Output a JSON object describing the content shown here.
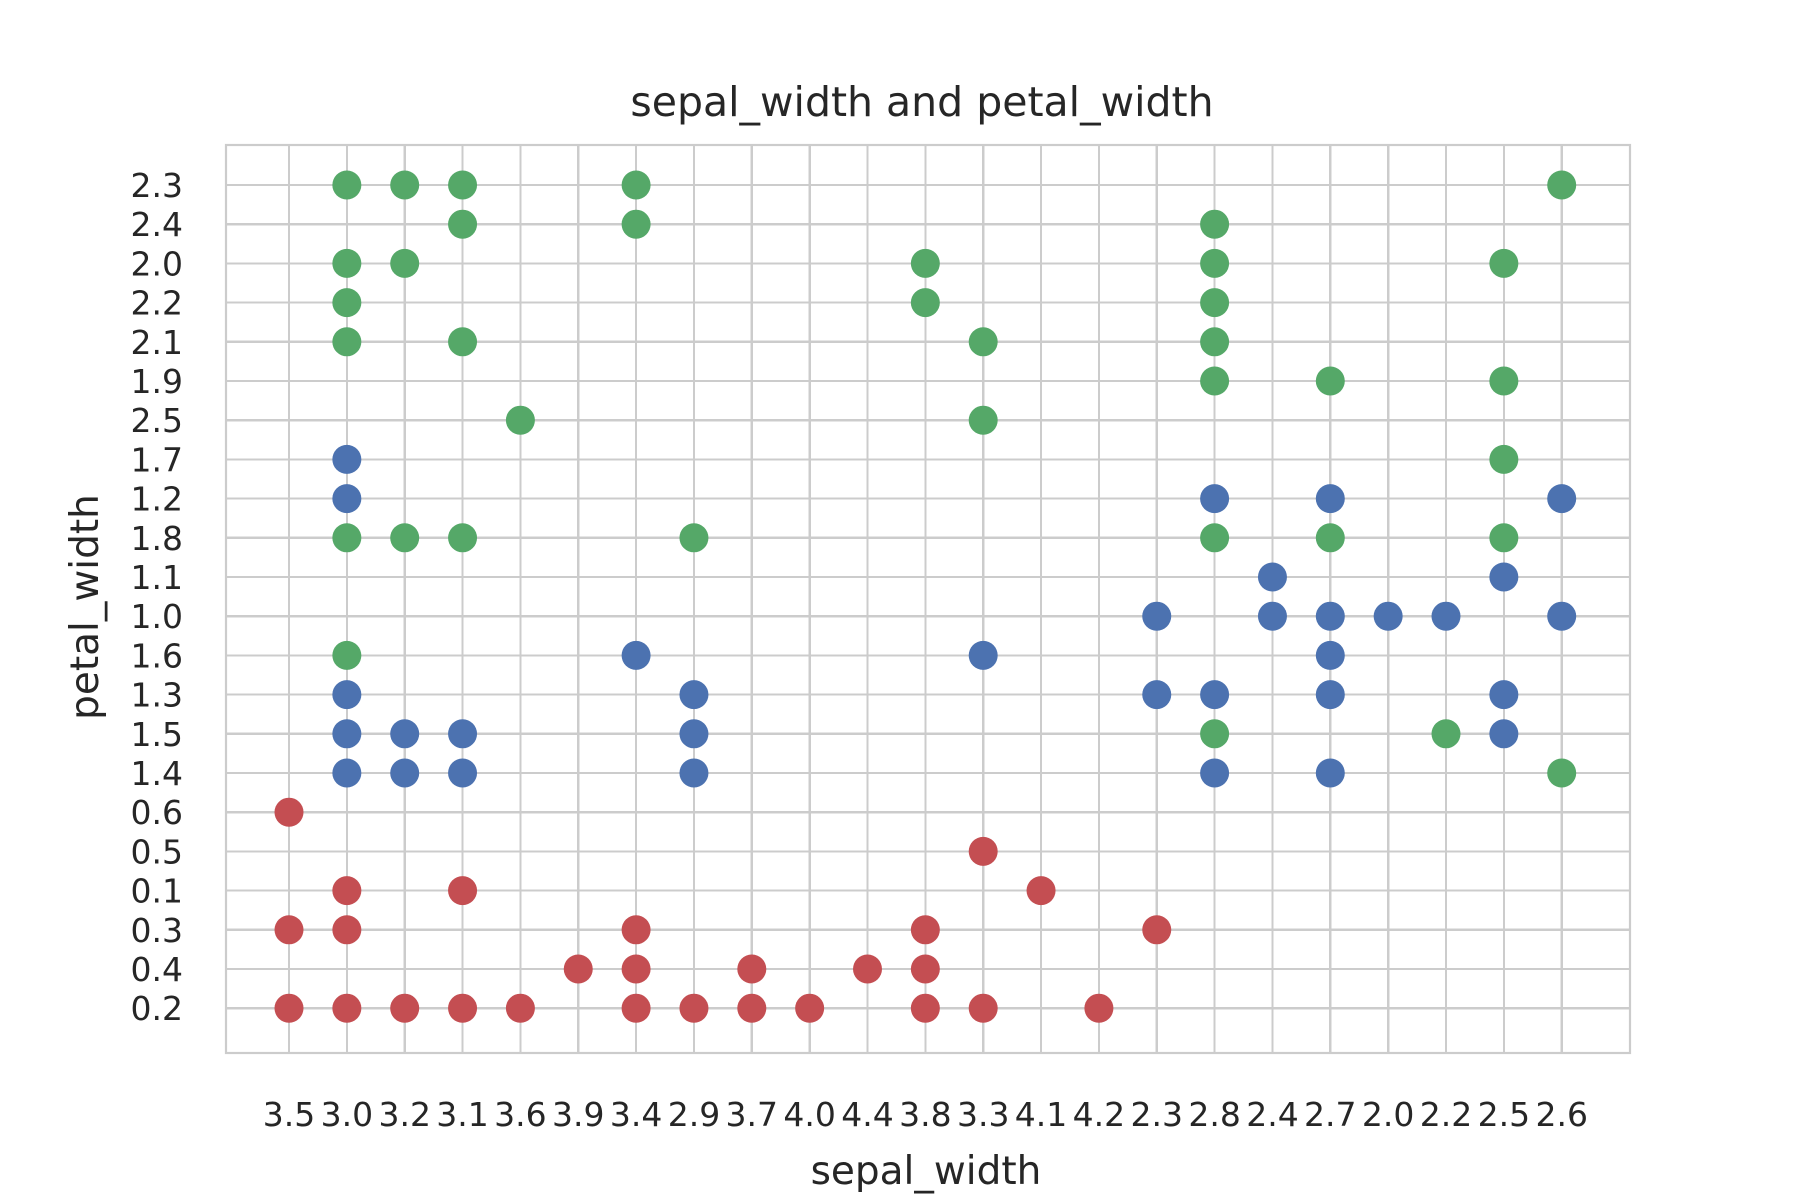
{
  "chart_data": {
    "type": "scatter",
    "title": "sepal_width  and  petal_width",
    "xlabel": "sepal_width",
    "ylabel": "petal_width",
    "x_categories": [
      "3.5",
      "3.0",
      "3.2",
      "3.1",
      "3.6",
      "3.9",
      "3.4",
      "2.9",
      "3.7",
      "4.0",
      "4.4",
      "3.8",
      "3.3",
      "4.1",
      "4.2",
      "2.3",
      "2.8",
      "2.4",
      "2.7",
      "2.0",
      "2.2",
      "2.5",
      "2.6"
    ],
    "y_categories_top_to_bottom": [
      "2.3",
      "2.4",
      "2.0",
      "2.2",
      "2.1",
      "1.9",
      "2.5",
      "1.7",
      "1.2",
      "1.8",
      "1.1",
      "1.0",
      "1.6",
      "1.3",
      "1.5",
      "1.4",
      "0.6",
      "0.5",
      "0.1",
      "0.3",
      "0.4",
      "0.2"
    ],
    "grid": true,
    "legend": "none",
    "colors": {
      "red": "#c44e52",
      "blue": "#4c72b0",
      "green": "#55a868"
    },
    "series": [
      {
        "color": "#c44e52",
        "points": [
          [
            "3.5",
            "0.6"
          ],
          [
            "3.5",
            "0.3"
          ],
          [
            "3.5",
            "0.2"
          ],
          [
            "3.0",
            "0.1"
          ],
          [
            "3.0",
            "0.3"
          ],
          [
            "3.0",
            "0.2"
          ],
          [
            "3.2",
            "0.2"
          ],
          [
            "3.1",
            "0.1"
          ],
          [
            "3.1",
            "0.2"
          ],
          [
            "3.6",
            "0.2"
          ],
          [
            "3.9",
            "0.4"
          ],
          [
            "3.4",
            "0.3"
          ],
          [
            "3.4",
            "0.4"
          ],
          [
            "3.4",
            "0.2"
          ],
          [
            "2.9",
            "0.2"
          ],
          [
            "3.7",
            "0.4"
          ],
          [
            "3.7",
            "0.2"
          ],
          [
            "4.0",
            "0.2"
          ],
          [
            "4.4",
            "0.4"
          ],
          [
            "3.8",
            "0.3"
          ],
          [
            "3.8",
            "0.4"
          ],
          [
            "3.8",
            "0.2"
          ],
          [
            "3.3",
            "0.5"
          ],
          [
            "3.3",
            "0.2"
          ],
          [
            "4.1",
            "0.1"
          ],
          [
            "4.2",
            "0.2"
          ],
          [
            "2.3",
            "0.3"
          ]
        ]
      },
      {
        "color": "#4c72b0",
        "points": [
          [
            "3.0",
            "1.7"
          ],
          [
            "3.0",
            "1.2"
          ],
          [
            "3.0",
            "1.3"
          ],
          [
            "3.0",
            "1.5"
          ],
          [
            "3.0",
            "1.4"
          ],
          [
            "3.2",
            "1.5"
          ],
          [
            "3.2",
            "1.4"
          ],
          [
            "3.1",
            "1.5"
          ],
          [
            "3.1",
            "1.4"
          ],
          [
            "3.4",
            "1.6"
          ],
          [
            "2.9",
            "1.3"
          ],
          [
            "2.9",
            "1.5"
          ],
          [
            "2.9",
            "1.4"
          ],
          [
            "3.3",
            "1.6"
          ],
          [
            "2.3",
            "1.0"
          ],
          [
            "2.3",
            "1.3"
          ],
          [
            "2.8",
            "1.2"
          ],
          [
            "2.8",
            "1.3"
          ],
          [
            "2.8",
            "1.4"
          ],
          [
            "2.4",
            "1.1"
          ],
          [
            "2.4",
            "1.0"
          ],
          [
            "2.7",
            "1.2"
          ],
          [
            "2.7",
            "1.0"
          ],
          [
            "2.7",
            "1.6"
          ],
          [
            "2.7",
            "1.3"
          ],
          [
            "2.7",
            "1.4"
          ],
          [
            "2.0",
            "1.0"
          ],
          [
            "2.2",
            "1.0"
          ],
          [
            "2.5",
            "1.1"
          ],
          [
            "2.5",
            "1.3"
          ],
          [
            "2.5",
            "1.5"
          ],
          [
            "2.6",
            "1.2"
          ],
          [
            "2.6",
            "1.0"
          ]
        ]
      },
      {
        "color": "#55a868",
        "points": [
          [
            "3.0",
            "2.3"
          ],
          [
            "3.0",
            "2.0"
          ],
          [
            "3.0",
            "2.2"
          ],
          [
            "3.0",
            "2.1"
          ],
          [
            "3.0",
            "1.8"
          ],
          [
            "3.0",
            "1.6"
          ],
          [
            "3.2",
            "2.3"
          ],
          [
            "3.2",
            "2.0"
          ],
          [
            "3.2",
            "1.8"
          ],
          [
            "3.1",
            "2.3"
          ],
          [
            "3.1",
            "2.4"
          ],
          [
            "3.1",
            "2.1"
          ],
          [
            "3.1",
            "1.8"
          ],
          [
            "3.6",
            "2.5"
          ],
          [
            "3.4",
            "2.3"
          ],
          [
            "3.4",
            "2.4"
          ],
          [
            "2.9",
            "1.8"
          ],
          [
            "3.8",
            "2.0"
          ],
          [
            "3.8",
            "2.2"
          ],
          [
            "3.3",
            "2.1"
          ],
          [
            "3.3",
            "2.5"
          ],
          [
            "2.8",
            "2.4"
          ],
          [
            "2.8",
            "2.0"
          ],
          [
            "2.8",
            "2.2"
          ],
          [
            "2.8",
            "2.1"
          ],
          [
            "2.8",
            "1.9"
          ],
          [
            "2.8",
            "1.8"
          ],
          [
            "2.8",
            "1.5"
          ],
          [
            "2.7",
            "1.9"
          ],
          [
            "2.7",
            "1.8"
          ],
          [
            "2.2",
            "1.5"
          ],
          [
            "2.5",
            "2.0"
          ],
          [
            "2.5",
            "1.9"
          ],
          [
            "2.5",
            "1.7"
          ],
          [
            "2.5",
            "1.8"
          ],
          [
            "2.6",
            "2.3"
          ],
          [
            "2.6",
            "1.4"
          ]
        ]
      }
    ]
  }
}
